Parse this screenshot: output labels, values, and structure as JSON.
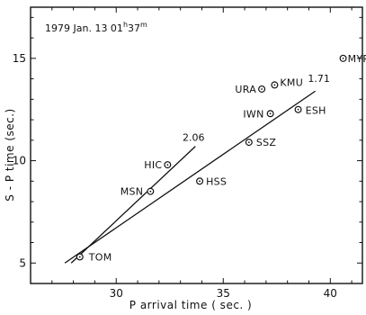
{
  "chart_data": {
    "type": "scatter",
    "title": "",
    "annotation": "1979 Jan. 13 01h37m",
    "annotation_main": "1979  Jan. 13  01",
    "annotation_h": "h",
    "annotation_min": "37",
    "annotation_m": "m",
    "xlabel": "P  arrival time  ( sec. )",
    "ylabel": "S - P  time  (sec.)",
    "xlim": [
      26,
      41.5
    ],
    "ylim": [
      4,
      17.5
    ],
    "x_ticks": [
      30,
      35,
      40
    ],
    "x_tick_labels": [
      "30",
      "35",
      "40"
    ],
    "y_ticks": [
      5,
      10,
      15
    ],
    "y_tick_labels": [
      "5",
      "10",
      "15"
    ],
    "grid": false,
    "points": [
      {
        "label": "TOM",
        "x": 28.3,
        "y": 5.3
      },
      {
        "label": "MSN",
        "x": 31.6,
        "y": 8.5
      },
      {
        "label": "HIC",
        "x": 32.4,
        "y": 9.8
      },
      {
        "label": "HSS",
        "x": 33.9,
        "y": 9.0
      },
      {
        "label": "SSZ",
        "x": 36.2,
        "y": 10.9
      },
      {
        "label": "IWN",
        "x": 37.2,
        "y": 12.3
      },
      {
        "label": "ESH",
        "x": 38.5,
        "y": 12.5
      },
      {
        "label": "URA",
        "x": 36.8,
        "y": 13.5
      },
      {
        "label": "KMU",
        "x": 37.4,
        "y": 13.7
      },
      {
        "label": "MYR",
        "x": 40.6,
        "y": 15.0
      }
    ],
    "lines": [
      {
        "label": "2.06",
        "x": [
          27.9,
          33.7
        ],
        "y": [
          5.0,
          10.7
        ]
      },
      {
        "label": "1.71",
        "x": [
          27.6,
          39.3
        ],
        "y": [
          5.0,
          13.4
        ]
      }
    ]
  }
}
